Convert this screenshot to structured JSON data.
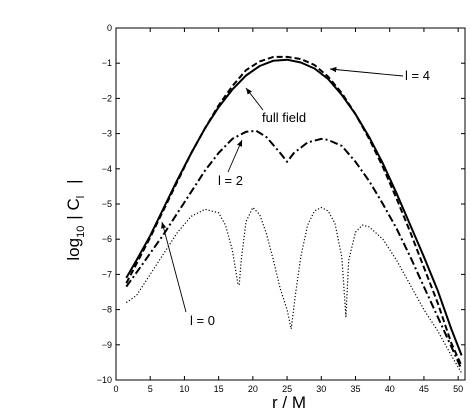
{
  "chart_data": {
    "type": "line",
    "title": "",
    "xlabel": "r / M",
    "ylabel_main": "log",
    "ylabel_sub": "10",
    "ylabel_rest": "| C",
    "ylabel_sub2": "l",
    "ylabel_end": "|",
    "xlim": [
      0,
      51
    ],
    "ylim": [
      -10,
      0
    ],
    "xticks": [
      0,
      5,
      10,
      15,
      20,
      25,
      30,
      35,
      40,
      45,
      50
    ],
    "yticks": [
      0,
      -1,
      -2,
      -3,
      -4,
      -5,
      -6,
      -7,
      -8,
      -9,
      -10
    ],
    "grid": false,
    "series": [
      {
        "name": "full field",
        "style": "solid",
        "x": [
          1.5,
          3,
          5,
          7,
          9,
          11,
          13,
          15,
          17,
          19,
          21,
          23,
          25,
          27,
          29,
          31,
          33,
          35,
          37,
          39,
          41,
          43,
          45,
          47,
          49,
          50.5
        ],
        "y": [
          -7.1,
          -6.6,
          -5.9,
          -5.1,
          -4.3,
          -3.55,
          -2.85,
          -2.25,
          -1.75,
          -1.35,
          -1.08,
          -0.93,
          -0.9,
          -0.98,
          -1.15,
          -1.45,
          -1.9,
          -2.45,
          -3.1,
          -3.85,
          -4.7,
          -5.6,
          -6.5,
          -7.45,
          -8.55,
          -9.3
        ]
      },
      {
        "name": "l = 4",
        "style": "dashed",
        "x": [
          1.5,
          3,
          5,
          7,
          9,
          11,
          13,
          15,
          17,
          19,
          21,
          23,
          25,
          27,
          29,
          31,
          33,
          35,
          37,
          39,
          41,
          43,
          45,
          47,
          49,
          50.5
        ],
        "y": [
          -7.25,
          -6.7,
          -5.95,
          -5.15,
          -4.35,
          -3.55,
          -2.85,
          -2.2,
          -1.65,
          -1.2,
          -0.95,
          -0.82,
          -0.82,
          -0.88,
          -1.05,
          -1.38,
          -1.85,
          -2.45,
          -3.15,
          -3.95,
          -4.85,
          -5.8,
          -6.8,
          -7.8,
          -8.95,
          -9.6
        ]
      },
      {
        "name": "l = 2",
        "style": "dashdot",
        "x": [
          1.5,
          3,
          5,
          7,
          9,
          11,
          13,
          15,
          17,
          19,
          20.5,
          22,
          24,
          25,
          26,
          28,
          30,
          31,
          33,
          35,
          37,
          39,
          41,
          43,
          45,
          47,
          49,
          50.5
        ],
        "y": [
          -7.35,
          -6.95,
          -6.4,
          -5.85,
          -5.25,
          -4.65,
          -4.05,
          -3.55,
          -3.15,
          -2.95,
          -2.92,
          -3.1,
          -3.55,
          -3.8,
          -3.55,
          -3.25,
          -3.15,
          -3.18,
          -3.35,
          -3.8,
          -4.35,
          -5.0,
          -5.7,
          -6.5,
          -7.35,
          -8.2,
          -9.05,
          -9.7
        ]
      },
      {
        "name": "l = 0",
        "style": "dotted",
        "x": [
          1.5,
          3,
          5,
          7,
          9,
          11,
          13,
          15,
          16,
          17,
          17.8,
          18,
          18.3,
          19,
          20,
          21,
          22,
          23,
          24,
          25,
          25.6,
          26.2,
          27,
          28,
          29,
          30,
          31,
          32,
          33,
          33.6,
          34,
          35,
          36,
          37,
          39,
          41,
          43,
          45,
          47,
          49,
          50.5
        ],
        "y": [
          -7.8,
          -7.6,
          -7.0,
          -6.4,
          -5.8,
          -5.35,
          -5.15,
          -5.25,
          -5.6,
          -6.3,
          -7.25,
          -7.3,
          -6.6,
          -5.5,
          -5.1,
          -5.3,
          -5.85,
          -6.6,
          -7.4,
          -8.0,
          -8.55,
          -7.6,
          -6.5,
          -5.6,
          -5.2,
          -5.1,
          -5.2,
          -5.55,
          -6.5,
          -8.2,
          -6.6,
          -5.8,
          -5.6,
          -5.65,
          -6.0,
          -6.6,
          -7.3,
          -8.0,
          -8.6,
          -9.3,
          -9.8
        ]
      }
    ],
    "annotations": [
      {
        "text": "l = 4",
        "target_series": "l = 4"
      },
      {
        "text": "full field",
        "target_series": "full field"
      },
      {
        "text": "l = 2",
        "target_series": "l = 2"
      },
      {
        "text": "l = 0",
        "target_series": "l = 0"
      }
    ]
  }
}
